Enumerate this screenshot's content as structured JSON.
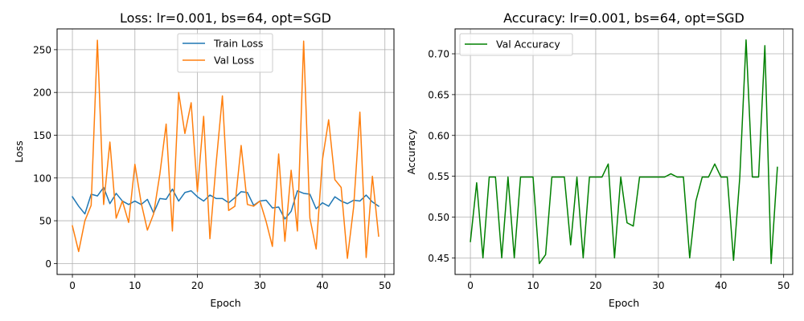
{
  "chart_data": [
    {
      "type": "line",
      "title": "Loss: lr=0.001, bs=64, opt=SGD",
      "xlabel": "Epoch",
      "ylabel": "Loss",
      "xlim": [
        -2.45,
        51.45
      ],
      "ylim": [
        -12.8,
        274.3
      ],
      "xticks": [
        0,
        10,
        20,
        30,
        40,
        50
      ],
      "yticks": [
        0,
        50,
        100,
        150,
        200,
        250
      ],
      "grid": true,
      "legend_position": "top-center",
      "x": [
        0,
        1,
        2,
        3,
        4,
        5,
        6,
        7,
        8,
        9,
        10,
        11,
        12,
        13,
        14,
        15,
        16,
        17,
        18,
        19,
        20,
        21,
        22,
        23,
        24,
        25,
        26,
        27,
        28,
        29,
        30,
        31,
        32,
        33,
        34,
        35,
        36,
        37,
        38,
        39,
        40,
        41,
        42,
        43,
        44,
        45,
        46,
        47,
        48,
        49
      ],
      "series": [
        {
          "name": "Train Loss",
          "color": "#1f77b4",
          "values": [
            78,
            67,
            58,
            81,
            79,
            89,
            70,
            82,
            73,
            69,
            73,
            69,
            75,
            59,
            76,
            75,
            87,
            73,
            83,
            85,
            78,
            73,
            80,
            76,
            76,
            71,
            77,
            84,
            83,
            68,
            73,
            74,
            65,
            66,
            52,
            61,
            85,
            82,
            81,
            64,
            71,
            67,
            78,
            73,
            70,
            74,
            73,
            80,
            72,
            67
          ]
        },
        {
          "name": "Val Loss",
          "color": "#ff7f0e",
          "values": [
            44,
            14,
            50,
            68,
            261,
            69,
            142,
            53,
            73,
            48,
            116,
            71,
            39,
            58,
            105,
            163,
            38,
            200,
            152,
            188,
            84,
            172,
            29,
            117,
            196,
            62,
            67,
            138,
            69,
            67,
            73,
            49,
            20,
            128,
            26,
            109,
            38,
            260,
            53,
            17,
            121,
            168,
            98,
            89,
            6,
            66,
            177,
            7,
            102,
            32
          ]
        }
      ]
    },
    {
      "type": "line",
      "title": "Accuracy: lr=0.001, bs=64, opt=SGD",
      "xlabel": "Epoch",
      "ylabel": "Accuracy",
      "xlim": [
        -2.45,
        51.45
      ],
      "ylim": [
        0.4297,
        0.7305
      ],
      "xticks": [
        0,
        10,
        20,
        30,
        40,
        50
      ],
      "yticks": [
        0.45,
        0.5,
        0.55,
        0.6,
        0.65,
        0.7
      ],
      "grid": true,
      "legend_position": "top-left",
      "x": [
        0,
        1,
        2,
        3,
        4,
        5,
        6,
        7,
        8,
        9,
        10,
        11,
        12,
        13,
        14,
        15,
        16,
        17,
        18,
        19,
        20,
        21,
        22,
        23,
        24,
        25,
        26,
        27,
        28,
        29,
        30,
        31,
        32,
        33,
        34,
        35,
        36,
        37,
        38,
        39,
        40,
        41,
        42,
        43,
        44,
        45,
        46,
        47,
        48,
        49
      ],
      "series": [
        {
          "name": "Val Accuracy",
          "color": "#008000",
          "values": [
            0.47,
            0.542,
            0.45,
            0.549,
            0.549,
            0.45,
            0.549,
            0.45,
            0.549,
            0.549,
            0.549,
            0.443,
            0.454,
            0.549,
            0.549,
            0.549,
            0.466,
            0.549,
            0.45,
            0.549,
            0.549,
            0.549,
            0.565,
            0.45,
            0.549,
            0.493,
            0.489,
            0.549,
            0.549,
            0.549,
            0.549,
            0.549,
            0.553,
            0.549,
            0.549,
            0.45,
            0.52,
            0.549,
            0.549,
            0.565,
            0.549,
            0.549,
            0.447,
            0.549,
            0.717,
            0.549,
            0.549,
            0.71,
            0.443,
            0.561
          ]
        }
      ]
    }
  ]
}
